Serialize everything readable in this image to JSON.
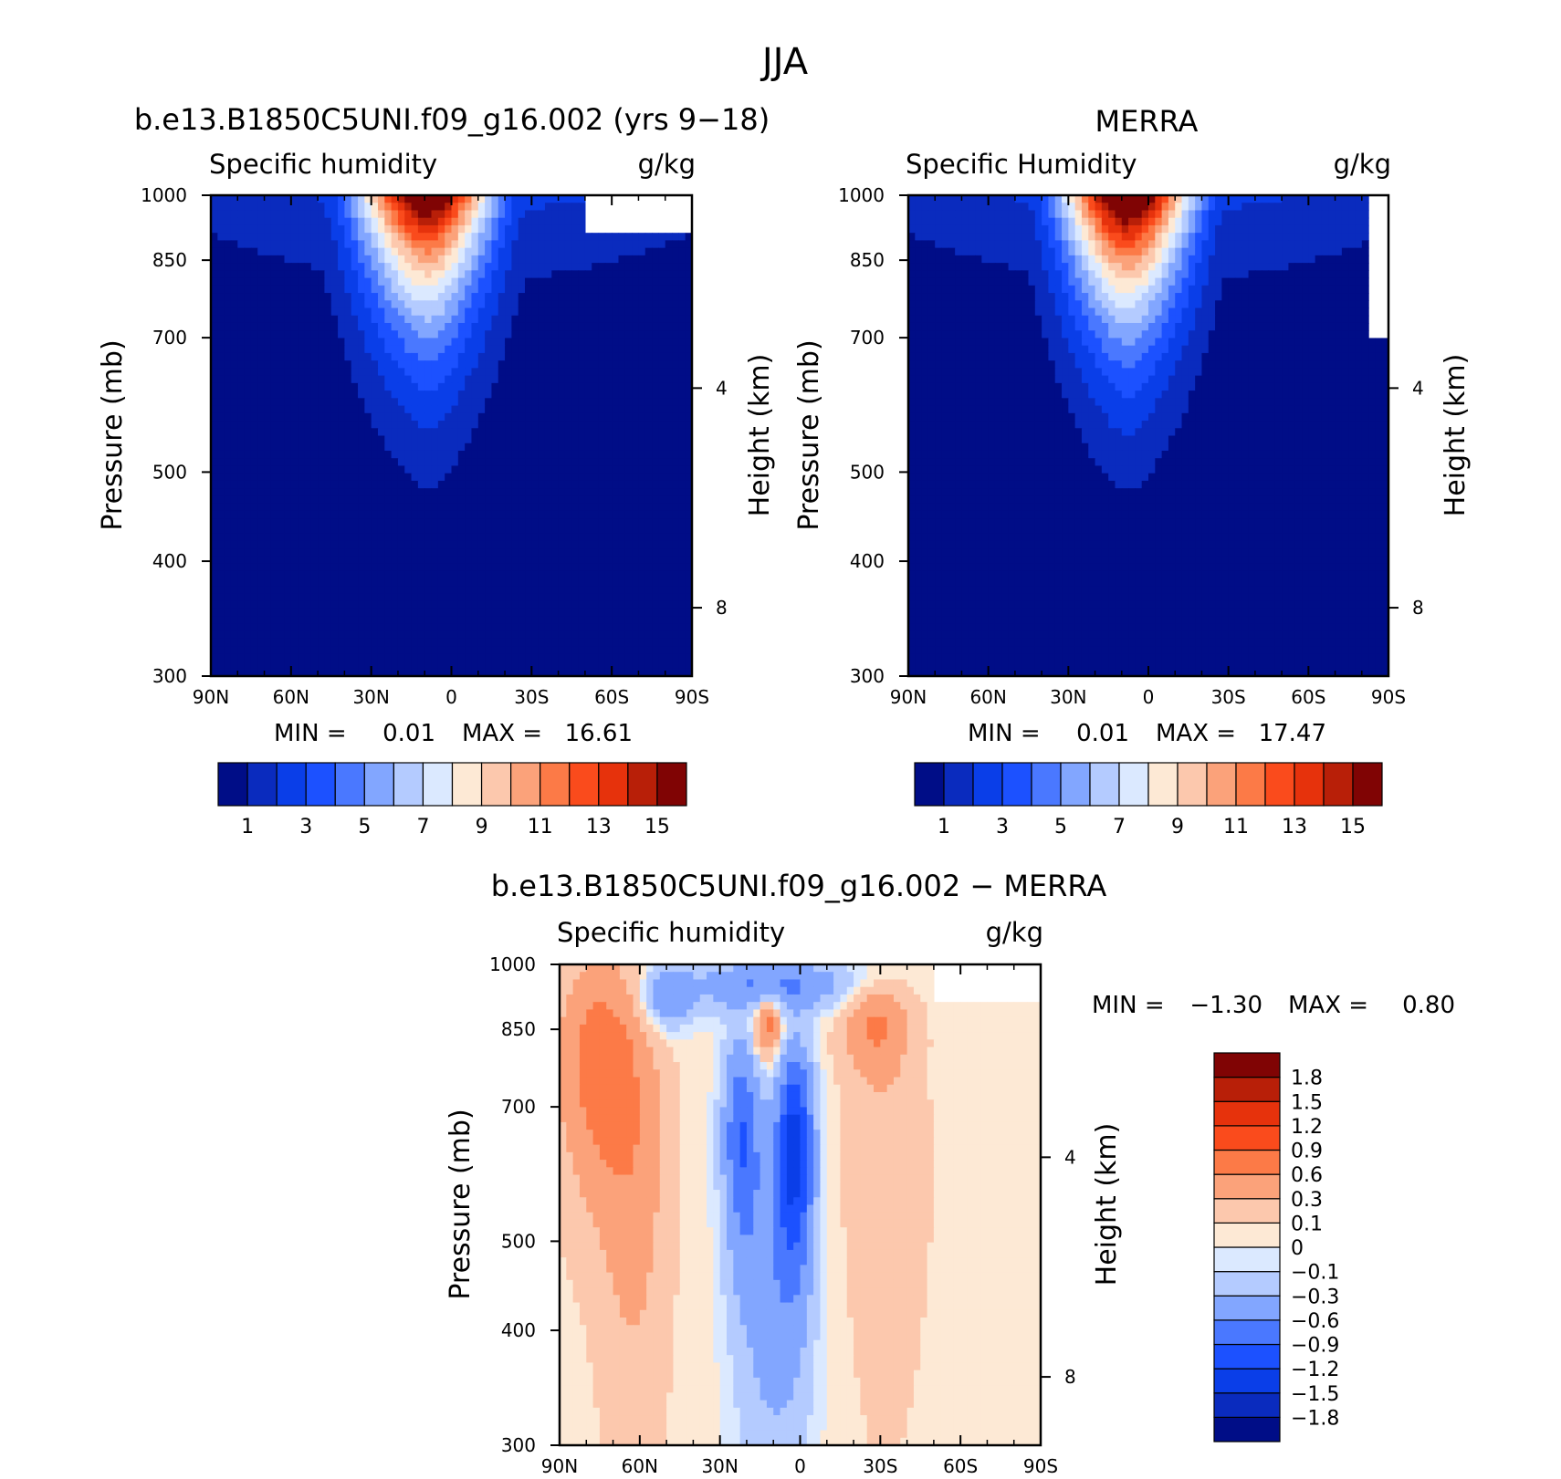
{
  "figure": {
    "title": "JJA"
  },
  "palettes": {
    "humidity": [
      "#000d87",
      "#0a2bbe",
      "#0a3ee8",
      "#1c51ff",
      "#4a78ff",
      "#82a6ff",
      "#b4cbff",
      "#dbe9ff",
      "#fde9d5",
      "#fcc8ad",
      "#fba27a",
      "#fc7a47",
      "#fa4b1c",
      "#e6320c",
      "#b81f08",
      "#800404"
    ],
    "difference": [
      "#000d87",
      "#0a2bbe",
      "#0a3ee8",
      "#1c51ff",
      "#4a78ff",
      "#82a6ff",
      "#b4cbff",
      "#dbe9ff",
      "#fde9d5",
      "#fcc8ad",
      "#fba27a",
      "#fc7a47",
      "#fa4b1c",
      "#e6320c",
      "#b81f08",
      "#800404"
    ]
  },
  "chart_data": [
    {
      "type": "heatmap",
      "panel_id": "model",
      "title": "b.e13.B1850C5UNI.f09_g16.002 (yrs 9−18)",
      "left_string": "Specific humidity",
      "right_string": "g/kg",
      "xlabel": "",
      "ylabel": "Pressure (mb)",
      "y2label": "Height (km)",
      "x_ticks": [
        "90N",
        "60N",
        "30N",
        "0",
        "30S",
        "60S",
        "90S"
      ],
      "x_range": [
        90,
        -90
      ],
      "y_ticks": [
        300,
        400,
        500,
        700,
        850,
        1000
      ],
      "y_range": [
        1000,
        300
      ],
      "y_scale": "log",
      "height_ticks": [
        8,
        4
      ],
      "height_tick_pressures": [
        356,
        617
      ],
      "stats": {
        "min_label": "MIN =",
        "min": "0.01",
        "max_label": "MAX =",
        "max": "16.61"
      },
      "colorbar": {
        "orientation": "horizontal",
        "labels": [
          "1",
          "3",
          "5",
          "7",
          "9",
          "11",
          "13",
          "15"
        ]
      },
      "missing_region": {
        "lat": [
          -50,
          -90
        ],
        "p": [
          1000,
          915
        ]
      },
      "field": {
        "peak_lat": 10,
        "peak_value": 16.61,
        "width_lat": 26,
        "tropopause_lat": 8,
        "tropopause_p": 370,
        "min": 0.01
      }
    },
    {
      "type": "heatmap",
      "panel_id": "obs",
      "title": "MERRA",
      "left_string": "Specific Humidity",
      "right_string": "g/kg",
      "xlabel": "",
      "ylabel": "Pressure (mb)",
      "y2label": "Height (km)",
      "x_ticks": [
        "90N",
        "60N",
        "30N",
        "0",
        "30S",
        "60S",
        "90S"
      ],
      "x_range": [
        90,
        -90
      ],
      "y_ticks": [
        300,
        400,
        500,
        700,
        850,
        1000
      ],
      "y_range": [
        1000,
        300
      ],
      "y_scale": "log",
      "height_ticks": [
        8,
        4
      ],
      "height_tick_pressures": [
        356,
        617
      ],
      "stats": {
        "min_label": "MIN =",
        "min": "0.01",
        "max_label": "MAX =",
        "max": "17.47"
      },
      "colorbar": {
        "orientation": "horizontal",
        "labels": [
          "1",
          "3",
          "5",
          "7",
          "9",
          "11",
          "13",
          "15"
        ]
      },
      "missing_region": {
        "lat": [
          -82,
          -90
        ],
        "p": [
          1000,
          700
        ]
      },
      "field": {
        "peak_lat": 8,
        "peak_value": 17.47,
        "width_lat": 25,
        "tropopause_lat": 8,
        "tropopause_p": 360,
        "min": 0.01
      }
    },
    {
      "type": "heatmap",
      "panel_id": "diff",
      "title": "b.e13.B1850C5UNI.f09_g16.002 − MERRA",
      "left_string": "Specific humidity",
      "right_string": "g/kg",
      "xlabel": "",
      "ylabel": "Pressure (mb)",
      "y2label": "Height (km)",
      "x_ticks": [
        "90N",
        "60N",
        "30N",
        "0",
        "30S",
        "60S",
        "90S"
      ],
      "x_range": [
        90,
        -90
      ],
      "y_ticks": [
        300,
        400,
        500,
        700,
        850,
        1000
      ],
      "y_range": [
        1000,
        300
      ],
      "y_scale": "log",
      "height_ticks": [
        8,
        4
      ],
      "height_tick_pressures": [
        356,
        617
      ],
      "stats": {
        "min_label": "MIN =",
        "min": "−1.30",
        "max_label": "MAX =",
        "max": "0.80"
      },
      "colorbar": {
        "orientation": "vertical",
        "labels": [
          "1.8",
          "1.5",
          "1.2",
          "0.9",
          "0.6",
          "0.3",
          "0.1",
          "0",
          "−0.1",
          "−0.3",
          "−0.6",
          "−0.9",
          "−1.2",
          "−1.5",
          "−1.8"
        ]
      },
      "missing_region": {
        "lat": [
          -50,
          -90
        ],
        "p": [
          1000,
          915
        ]
      },
      "features": [
        {
          "lat": 76,
          "p": 780,
          "dlat": 14,
          "dp": 220,
          "value": 0.7
        },
        {
          "lat": 62,
          "p": 620,
          "dlat": 12,
          "dp": 300,
          "value": 0.4
        },
        {
          "lat": 12,
          "p": 860,
          "dlat": 5,
          "dp": 70,
          "value": 0.75
        },
        {
          "lat": -28,
          "p": 860,
          "dlat": 12,
          "dp": 90,
          "value": 0.55
        },
        {
          "lat": -32,
          "p": 600,
          "dlat": 14,
          "dp": 250,
          "value": 0.25
        },
        {
          "lat": 2,
          "p": 640,
          "dlat": 7,
          "dp": 170,
          "value": -1.3
        },
        {
          "lat": 22,
          "p": 660,
          "dlat": 7,
          "dp": 170,
          "value": -0.9
        },
        {
          "lat": 10,
          "p": 450,
          "dlat": 14,
          "dp": 200,
          "value": -0.5
        },
        {
          "lat": 10,
          "p": 950,
          "dlat": 30,
          "dp": 60,
          "value": -0.7
        },
        {
          "lat": 50,
          "p": 920,
          "dlat": 10,
          "dp": 70,
          "value": -0.6
        }
      ]
    }
  ]
}
